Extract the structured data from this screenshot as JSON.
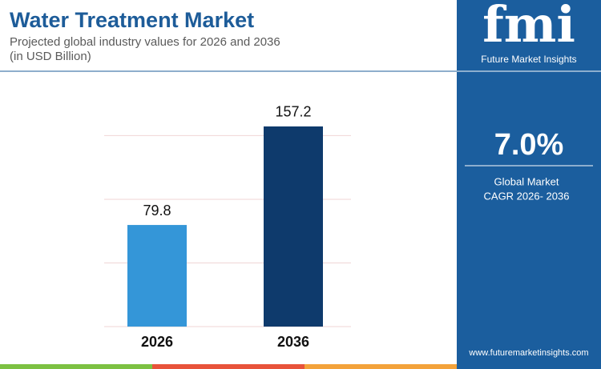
{
  "chart_data": {
    "type": "bar",
    "title": "Water Treatment Market",
    "subtitle": [
      "Projected global industry values for 2026 and 2036",
      "(in USD Billion)"
    ],
    "categories": [
      "2026",
      "2036"
    ],
    "values": [
      79.8,
      157.2
    ],
    "colors": [
      "#3496d8",
      "#0e3a6c"
    ],
    "ylim": [
      0,
      160
    ],
    "yticks": [
      0,
      50,
      100,
      150
    ],
    "grid": true
  },
  "side_panel": {
    "logo": "fmi",
    "brand": "Future Market Insights",
    "cagr": "7.0%",
    "cagr_label": [
      "Global Market",
      "CAGR 2026- 2036"
    ],
    "website": "www.futuremarketinsights.com"
  }
}
